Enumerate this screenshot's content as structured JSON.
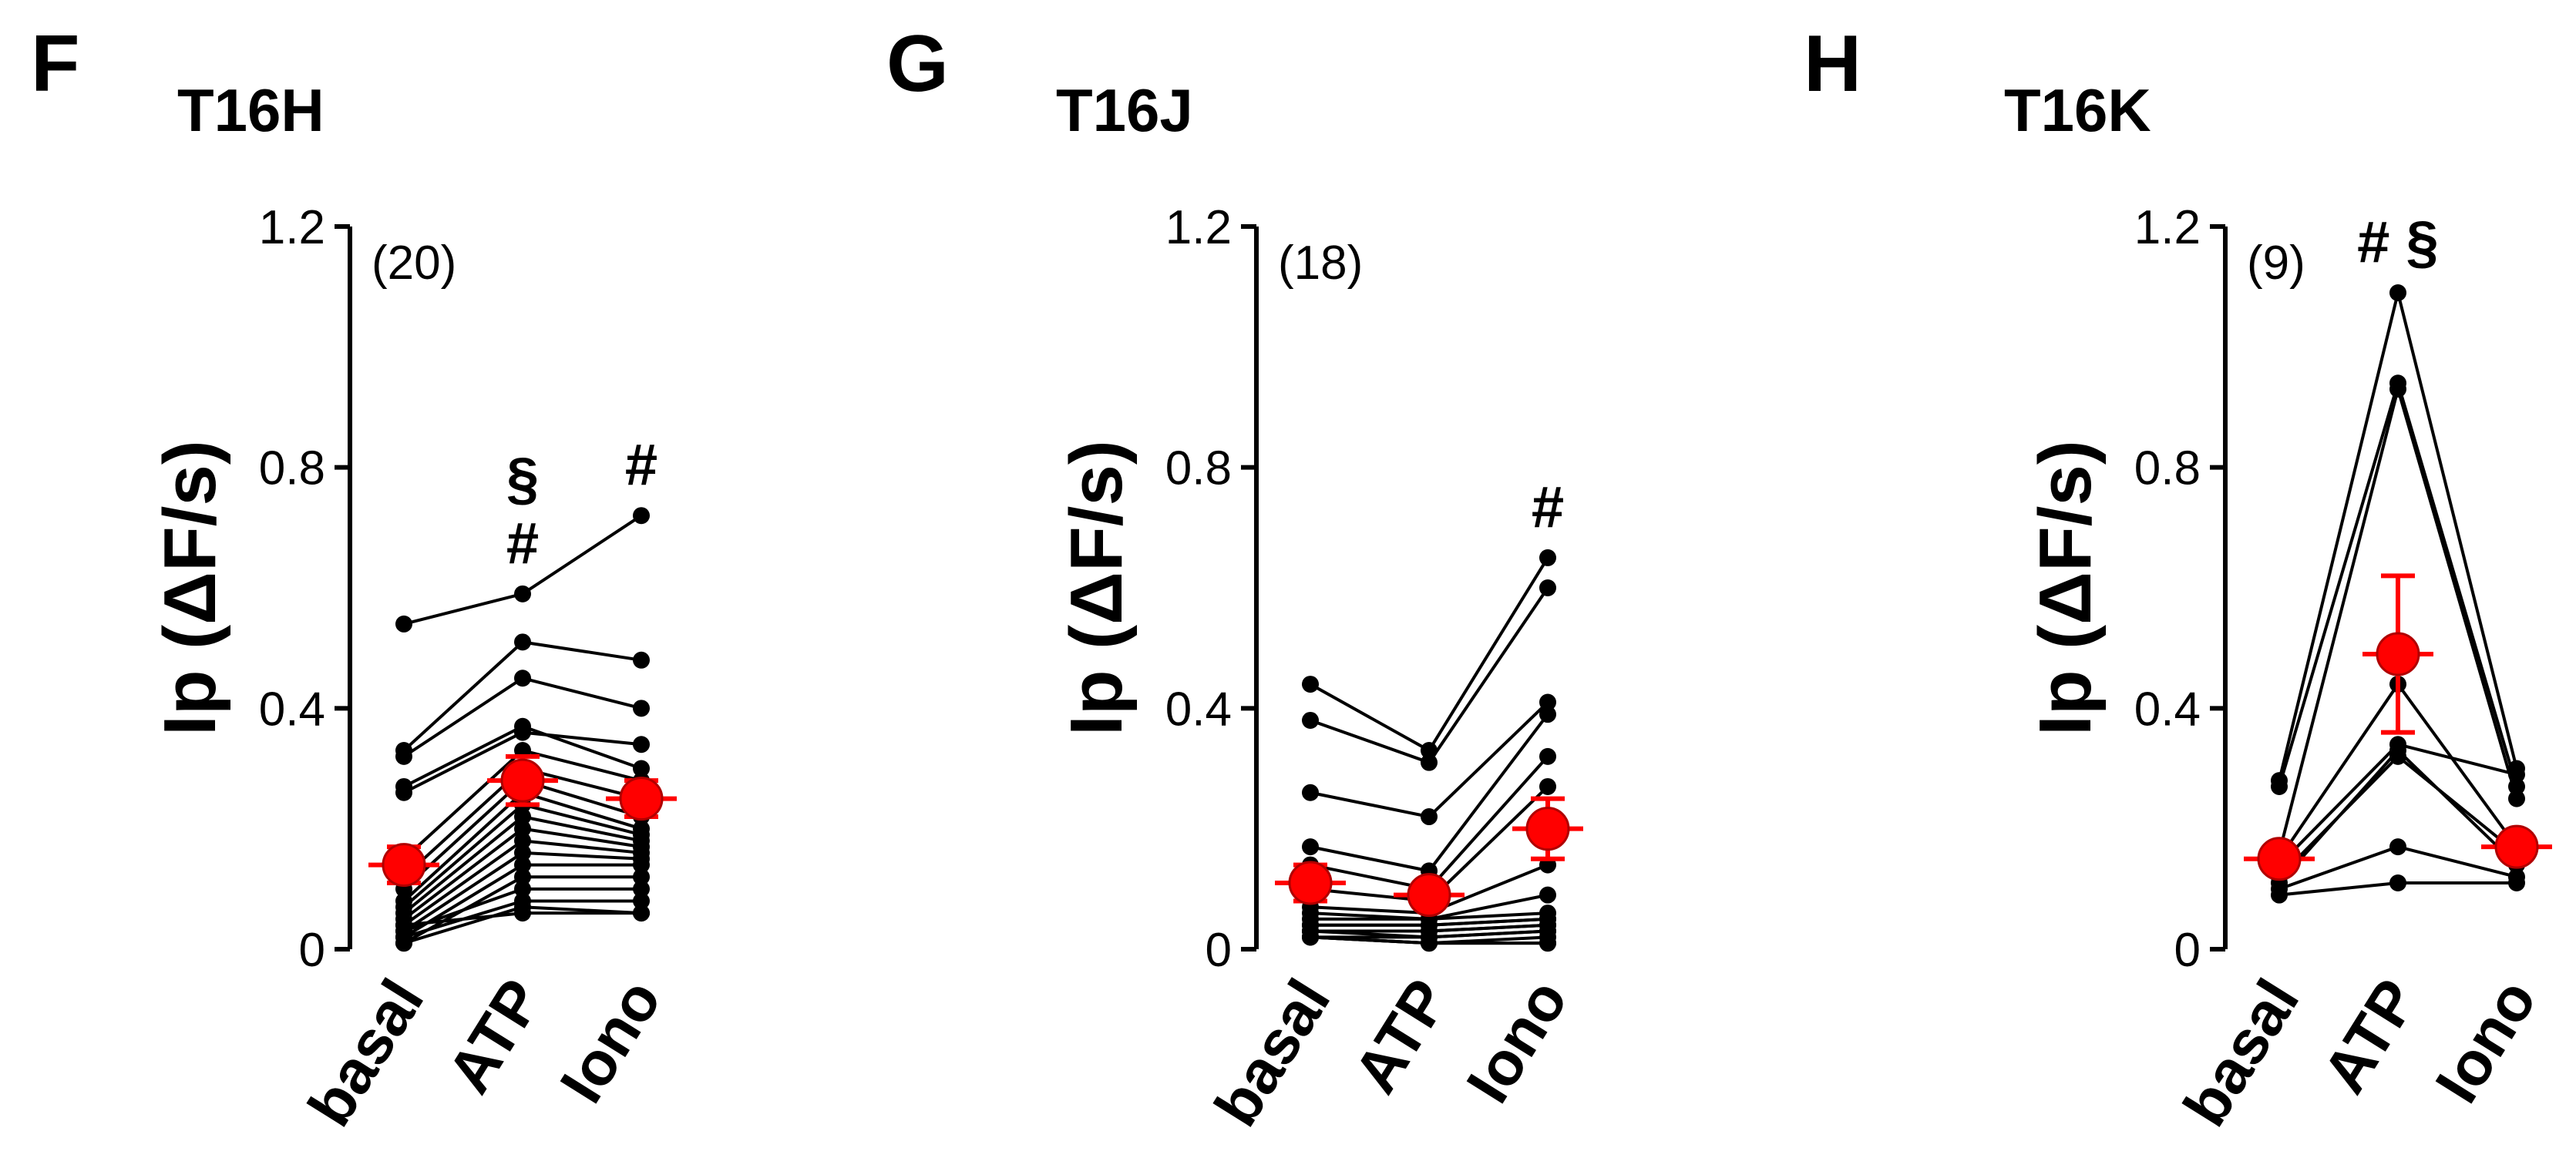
{
  "chart_data": [
    {
      "type": "paired",
      "panel": "F",
      "title": "T16H",
      "ylabel": "Ip (ΔF/s)",
      "n_label": "(20)",
      "categories": [
        "basal",
        "ATP",
        "Iono"
      ],
      "ylim": [
        0,
        1.2
      ],
      "yticks": [
        0,
        0.4,
        0.8,
        1.2
      ],
      "line_color": "#000000",
      "mean_color": "#ff0000",
      "series": [
        {
          "values": [
            0.54,
            0.59,
            0.72
          ]
        },
        {
          "values": [
            0.33,
            0.51,
            0.48
          ]
        },
        {
          "values": [
            0.32,
            0.45,
            0.4
          ]
        },
        {
          "values": [
            0.27,
            0.37,
            0.3
          ]
        },
        {
          "values": [
            0.26,
            0.36,
            0.34
          ]
        },
        {
          "values": [
            0.15,
            0.33,
            0.28
          ]
        },
        {
          "values": [
            0.12,
            0.3,
            0.25
          ]
        },
        {
          "values": [
            0.1,
            0.28,
            0.22
          ]
        },
        {
          "values": [
            0.08,
            0.26,
            0.2
          ]
        },
        {
          "values": [
            0.07,
            0.24,
            0.19
          ]
        },
        {
          "values": [
            0.06,
            0.22,
            0.18
          ]
        },
        {
          "values": [
            0.05,
            0.2,
            0.17
          ]
        },
        {
          "values": [
            0.04,
            0.18,
            0.16
          ]
        },
        {
          "values": [
            0.03,
            0.16,
            0.15
          ]
        },
        {
          "values": [
            0.02,
            0.14,
            0.14
          ]
        },
        {
          "values": [
            0.01,
            0.12,
            0.12
          ]
        },
        {
          "values": [
            0.03,
            0.1,
            0.1
          ]
        },
        {
          "values": [
            0.02,
            0.08,
            0.08
          ]
        },
        {
          "values": [
            0.01,
            0.07,
            0.06
          ]
        },
        {
          "values": [
            0.04,
            0.06,
            0.06
          ]
        }
      ],
      "mean": {
        "values": [
          0.14,
          0.28,
          0.25
        ],
        "errors": [
          0.03,
          0.04,
          0.03
        ]
      },
      "annotations": [
        [],
        [
          "§",
          "#"
        ],
        [
          "#"
        ]
      ]
    },
    {
      "type": "paired",
      "panel": "G",
      "title": "T16J",
      "ylabel": "Ip (ΔF/s)",
      "n_label": "(18)",
      "categories": [
        "basal",
        "ATP",
        "Iono"
      ],
      "ylim": [
        0,
        1.2
      ],
      "yticks": [
        0,
        0.4,
        0.8,
        1.2
      ],
      "line_color": "#000000",
      "mean_color": "#ff0000",
      "series": [
        {
          "values": [
            0.44,
            0.33,
            0.65
          ]
        },
        {
          "values": [
            0.38,
            0.31,
            0.6
          ]
        },
        {
          "values": [
            0.26,
            0.22,
            0.41
          ]
        },
        {
          "values": [
            0.17,
            0.13,
            0.39
          ]
        },
        {
          "values": [
            0.14,
            0.1,
            0.32
          ]
        },
        {
          "values": [
            0.1,
            0.08,
            0.27
          ]
        },
        {
          "values": [
            0.07,
            0.06,
            0.14
          ]
        },
        {
          "values": [
            0.06,
            0.05,
            0.09
          ]
        },
        {
          "values": [
            0.05,
            0.05,
            0.06
          ]
        },
        {
          "values": [
            0.04,
            0.04,
            0.05
          ]
        },
        {
          "values": [
            0.04,
            0.04,
            0.05
          ]
        },
        {
          "values": [
            0.03,
            0.03,
            0.04
          ]
        },
        {
          "values": [
            0.03,
            0.03,
            0.04
          ]
        },
        {
          "values": [
            0.03,
            0.02,
            0.03
          ]
        },
        {
          "values": [
            0.02,
            0.02,
            0.03
          ]
        },
        {
          "values": [
            0.02,
            0.01,
            0.02
          ]
        },
        {
          "values": [
            0.02,
            0.01,
            0.01
          ]
        },
        {
          "values": [
            0.02,
            0.01,
            0.01
          ]
        }
      ],
      "mean": {
        "values": [
          0.11,
          0.09,
          0.2
        ],
        "errors": [
          0.03,
          0.02,
          0.05
        ]
      },
      "annotations": [
        [],
        [],
        [
          "#"
        ]
      ]
    },
    {
      "type": "paired",
      "panel": "H",
      "title": "T16K",
      "ylabel": "Ip (ΔF/s)",
      "n_label": "(9)",
      "categories": [
        "basal",
        "ATP",
        "Iono"
      ],
      "ylim": [
        0,
        1.2
      ],
      "yticks": [
        0,
        0.4,
        0.8,
        1.2
      ],
      "line_color": "#000000",
      "mean_color": "#ff0000",
      "series": [
        {
          "values": [
            0.28,
            1.09,
            0.3
          ]
        },
        {
          "values": [
            0.27,
            0.94,
            0.27
          ]
        },
        {
          "values": [
            0.16,
            0.93,
            0.25
          ]
        },
        {
          "values": [
            0.15,
            0.44,
            0.17
          ]
        },
        {
          "values": [
            0.14,
            0.34,
            0.29
          ]
        },
        {
          "values": [
            0.12,
            0.32,
            0.16
          ]
        },
        {
          "values": [
            0.11,
            0.33,
            0.14
          ]
        },
        {
          "values": [
            0.1,
            0.17,
            0.12
          ]
        },
        {
          "values": [
            0.09,
            0.11,
            0.11
          ]
        }
      ],
      "mean": {
        "values": [
          0.15,
          0.49,
          0.17
        ],
        "errors": [
          0.01,
          0.13,
          0.02
        ]
      },
      "annotations": [
        [],
        [
          "# §"
        ],
        []
      ]
    }
  ]
}
